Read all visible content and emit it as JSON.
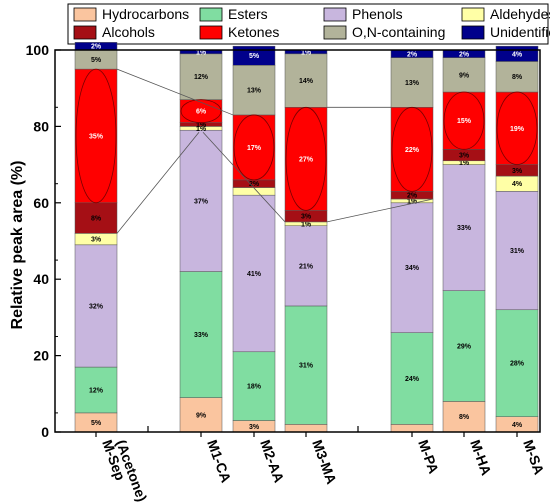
{
  "chart_data": {
    "type": "bar",
    "stacked": true,
    "title": "",
    "xlabel": "",
    "ylabel": "Relative peak area (%)",
    "ylim": [
      0,
      100
    ],
    "yticks": [
      0,
      20,
      40,
      60,
      80,
      100
    ],
    "categories": [
      "M-Sep\n(Acetone)",
      "M1-CA",
      "M2-AA",
      "M3-MA",
      "M-PA",
      "M-HA",
      "M-SA"
    ],
    "legend_position": "top",
    "series": [
      {
        "name": "Hydrocarbons",
        "color": "#FAC59F",
        "values": [
          5,
          9,
          3,
          2,
          2,
          8,
          4
        ],
        "labels": [
          "5%",
          "9%",
          "3%",
          "",
          "",
          "8%",
          "4%"
        ]
      },
      {
        "name": "Esters",
        "color": "#80DDA1",
        "values": [
          12,
          33,
          18,
          31,
          24,
          29,
          28
        ],
        "labels": [
          "12%",
          "33%",
          "18%",
          "31%",
          "24%",
          "29%",
          "28%"
        ]
      },
      {
        "name": "Phenols",
        "color": "#C8B6DE",
        "values": [
          32,
          37,
          41,
          21,
          34,
          33,
          31
        ],
        "labels": [
          "32%",
          "37%",
          "41%",
          "21%",
          "34%",
          "33%",
          "31%"
        ]
      },
      {
        "name": "Aldehydes",
        "color": "#FFFFA6",
        "values": [
          3,
          1,
          2,
          1,
          1,
          1,
          4
        ],
        "labels": [
          "3%",
          "1%",
          "",
          "1%",
          "1%",
          "1%",
          "4%"
        ]
      },
      {
        "name": "Alcohols",
        "color": "#A50F15",
        "values": [
          8,
          1,
          2,
          3,
          2,
          3,
          3
        ],
        "labels": [
          "8%",
          "1%",
          "2%",
          "3%",
          "2%",
          "3%",
          "3%"
        ]
      },
      {
        "name": "Ketones",
        "color": "#FF0000",
        "values": [
          35,
          6,
          17,
          27,
          22,
          15,
          19
        ],
        "labels": [
          "35%",
          "6%",
          "17%",
          "27%",
          "22%",
          "15%",
          "19%"
        ]
      },
      {
        "name": "O,N-containing",
        "color": "#B2B39A",
        "values": [
          5,
          12,
          13,
          14,
          13,
          9,
          8
        ],
        "labels": [
          "5%",
          "12%",
          "13%",
          "14%",
          "13%",
          "9%",
          "8%"
        ]
      },
      {
        "name": "Unidentified",
        "color": "#00008B",
        "values": [
          2,
          1,
          5,
          1,
          2,
          2,
          4
        ],
        "labels": [
          "2%",
          "1%",
          "5%",
          "1%",
          "2%",
          "2%",
          "4%"
        ]
      }
    ]
  }
}
